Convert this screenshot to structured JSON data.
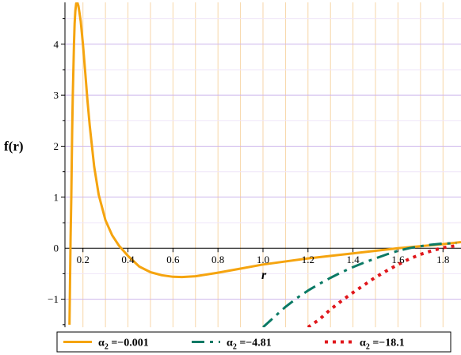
{
  "chart_data": {
    "type": "line",
    "xlabel": "r",
    "ylabel": "f(r)",
    "xlim": [
      0.12,
      1.88
    ],
    "ylim": [
      -1.55,
      4.82
    ],
    "x_ticks": [
      0.2,
      0.4,
      0.6,
      0.8,
      1.0,
      1.2,
      1.4,
      1.6,
      1.8
    ],
    "x_tick_labels": [
      "0.2",
      "0.4",
      "0.6",
      "0.8",
      "1.0",
      "1.2",
      "1.4",
      "1.6",
      "1.8"
    ],
    "y_ticks": [
      -1,
      1,
      2,
      3,
      4
    ],
    "y_tick_labels": [
      "−1",
      "1",
      "2",
      "3",
      "4"
    ],
    "y_zero_label": "0",
    "grid": true,
    "grid_colors": {
      "vertical": "#f7d6a8",
      "horizontal": "#cdb6ec"
    },
    "legend_position": "bottom",
    "series": [
      {
        "name": "α₂ = −0.001",
        "legend_symbol": "α",
        "legend_subscript": "2",
        "legend_value": "=−0.001",
        "color": "#f5a40f",
        "style": "solid",
        "x": [
          0.14,
          0.142,
          0.145,
          0.148,
          0.15,
          0.152,
          0.155,
          0.158,
          0.16,
          0.163,
          0.166,
          0.17,
          0.175,
          0.18,
          0.185,
          0.19,
          0.2,
          0.21,
          0.22,
          0.23,
          0.25,
          0.27,
          0.3,
          0.33,
          0.36,
          0.4,
          0.45,
          0.5,
          0.55,
          0.6,
          0.64,
          0.7,
          0.8,
          0.9,
          1.0,
          1.2,
          1.4,
          1.6,
          1.8,
          1.88
        ],
        "y": [
          -1.5,
          -0.8,
          0.2,
          1.0,
          1.6,
          2.3,
          3.0,
          3.6,
          4.0,
          4.4,
          4.65,
          4.8,
          4.82,
          4.75,
          4.6,
          4.45,
          4.0,
          3.45,
          2.9,
          2.4,
          1.6,
          1.05,
          0.55,
          0.25,
          0.05,
          -0.15,
          -0.36,
          -0.47,
          -0.53,
          -0.56,
          -0.565,
          -0.55,
          -0.48,
          -0.4,
          -0.32,
          -0.2,
          -0.1,
          0.0,
          0.08,
          0.12
        ]
      },
      {
        "name": "α₂ = −4.81",
        "legend_symbol": "α",
        "legend_subscript": "2",
        "legend_value": "=−4.81",
        "color": "#0b7a65",
        "style": "dashdot",
        "x": [
          1.0,
          1.05,
          1.1,
          1.15,
          1.2,
          1.25,
          1.3,
          1.35,
          1.4,
          1.45,
          1.5,
          1.55,
          1.6,
          1.65,
          1.7,
          1.75,
          1.8,
          1.86
        ],
        "y": [
          -1.55,
          -1.35,
          -1.15,
          -0.98,
          -0.83,
          -0.7,
          -0.58,
          -0.47,
          -0.37,
          -0.28,
          -0.2,
          -0.12,
          -0.05,
          0.0,
          0.04,
          0.07,
          0.09,
          0.1
        ]
      },
      {
        "name": "α₂ = −18.1",
        "legend_symbol": "α",
        "legend_subscript": "2",
        "legend_value": "=−18.1",
        "color": "#e0161b",
        "style": "dotted",
        "x": [
          1.2,
          1.25,
          1.3,
          1.35,
          1.4,
          1.45,
          1.5,
          1.55,
          1.6,
          1.65,
          1.7,
          1.75,
          1.8,
          1.86
        ],
        "y": [
          -1.55,
          -1.4,
          -1.2,
          -1.03,
          -0.87,
          -0.72,
          -0.57,
          -0.44,
          -0.32,
          -0.21,
          -0.12,
          -0.05,
          0.01,
          0.05
        ]
      }
    ]
  }
}
